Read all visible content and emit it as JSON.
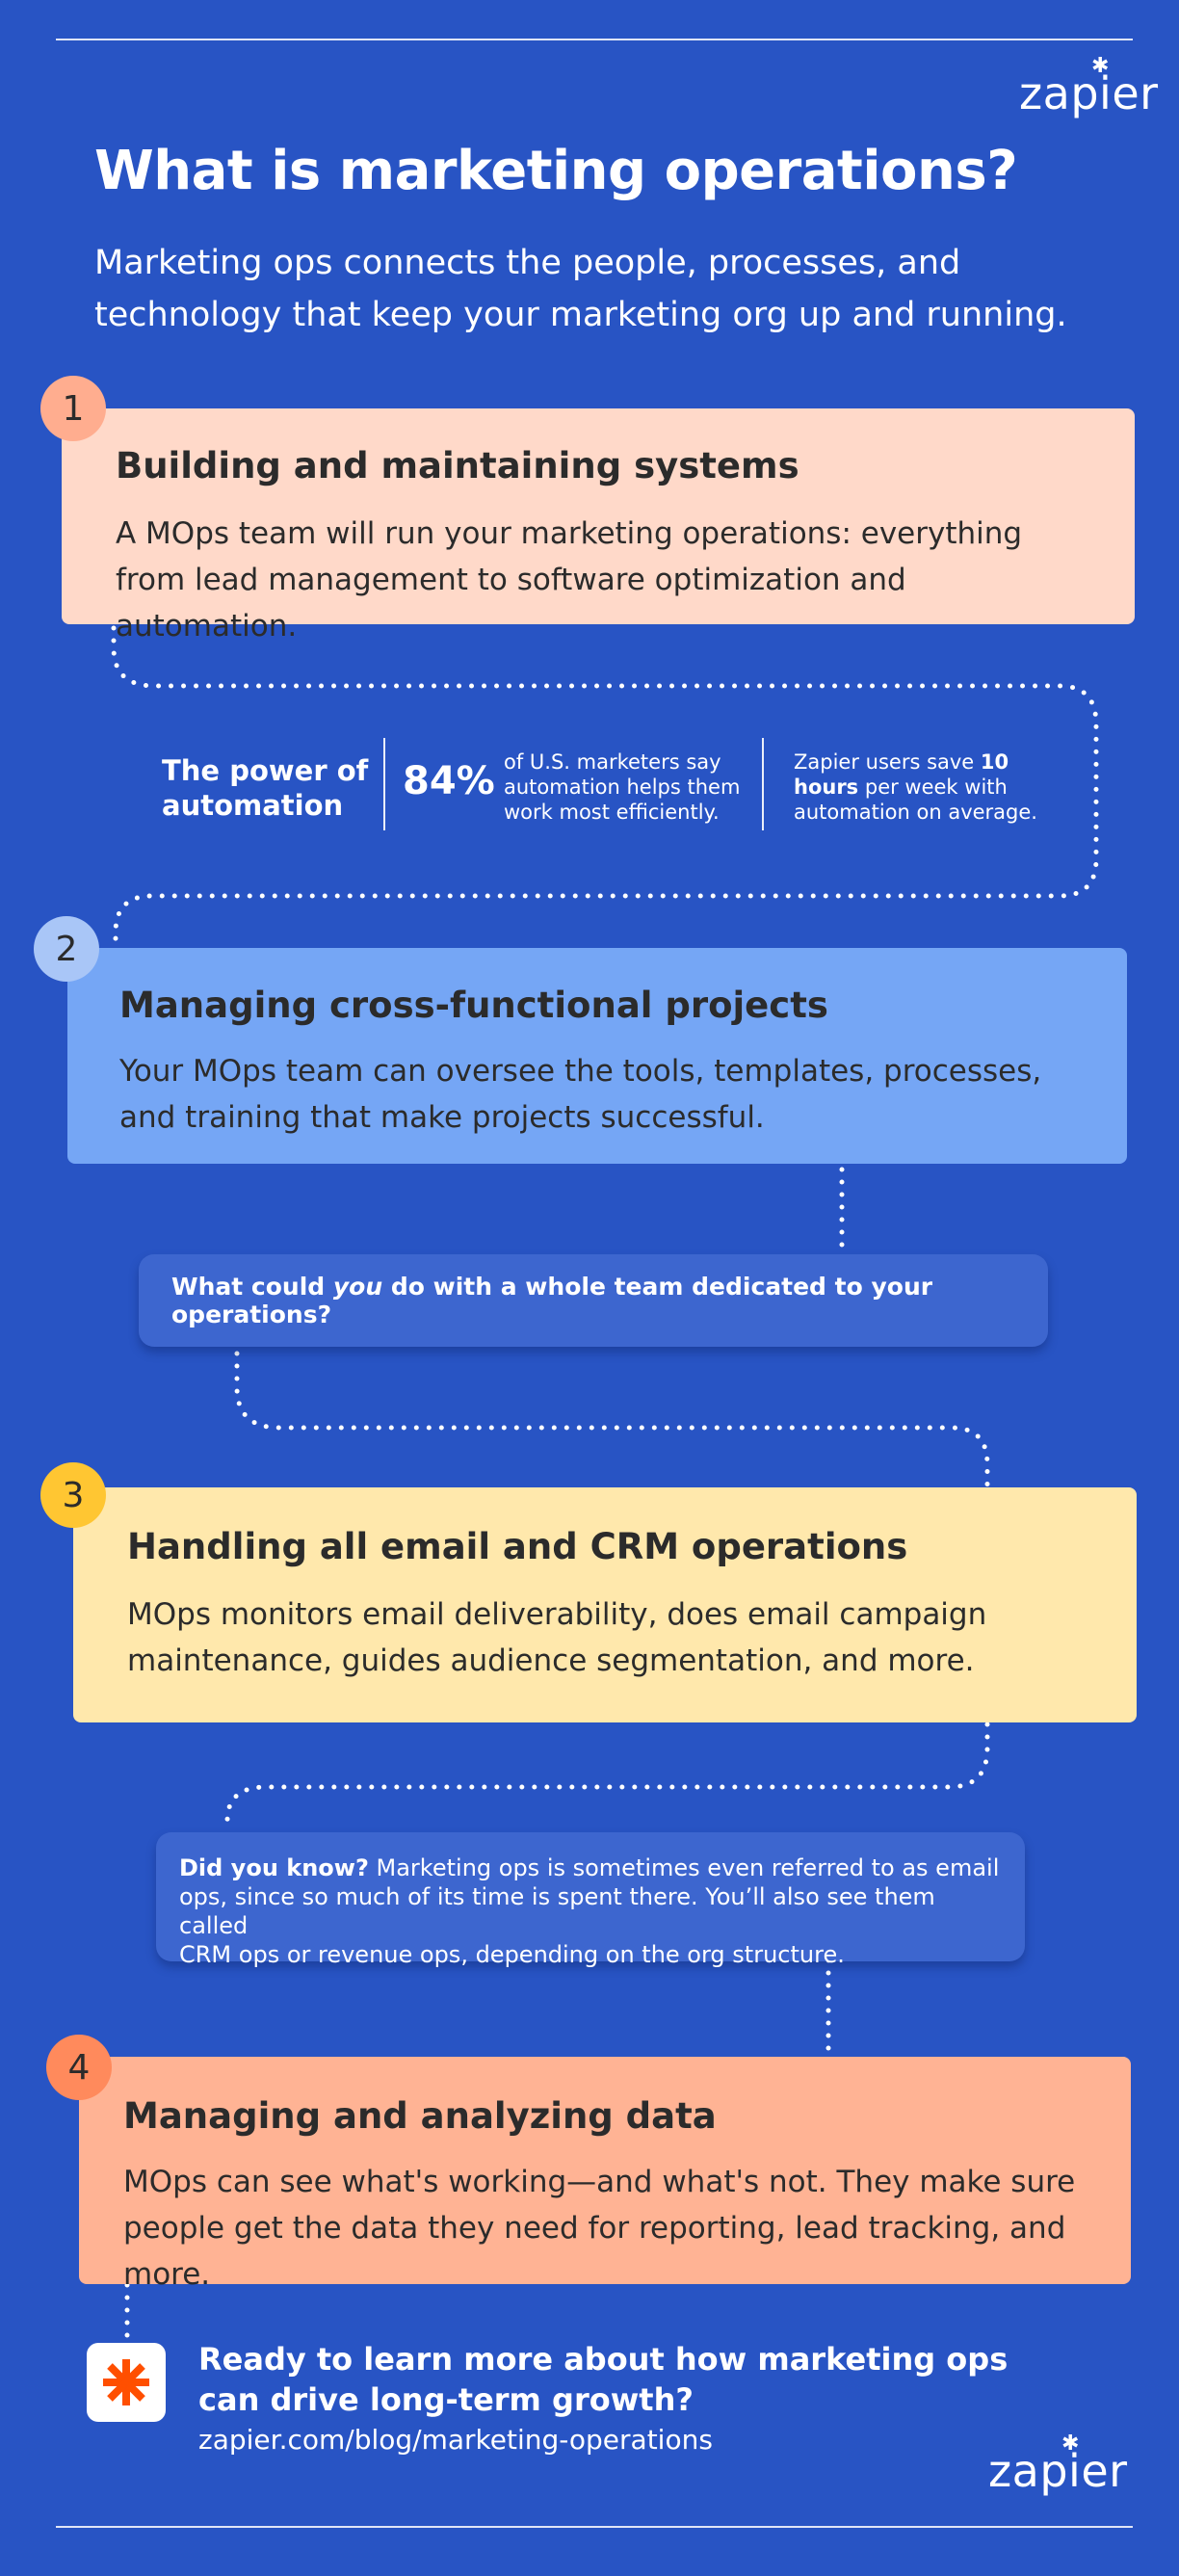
{
  "brand": {
    "logo_text": "zapier",
    "logo_star": "✱"
  },
  "header": {
    "title": "What is marketing operations?",
    "subtitle": "Marketing ops connects the people, processes, and technology that keep your marketing org up and running."
  },
  "steps": [
    {
      "number": "1",
      "title": "Building and maintaining systems",
      "body": "A MOps team will run your marketing operations: everything from lead management to software optimization and automation.",
      "card_color": "#ffd9c9",
      "badge_color": "#ffad8f"
    },
    {
      "number": "2",
      "title": "Managing cross-functional projects",
      "body": "Your MOps team can oversee the tools, templates, processes, and training that make projects successful.",
      "card_color": "#75a6f5",
      "badge_color": "#a9c6f7"
    },
    {
      "number": "3",
      "title": "Handling all email and CRM operations",
      "body": "MOps monitors email deliverability, does email campaign maintenance, guides audience segmentation, and more.",
      "card_color": "#ffe8ac",
      "badge_color": "#ffc632"
    },
    {
      "number": "4",
      "title": "Managing and analyzing data",
      "body": "MOps can see what's working—and what's not. They make sure people get the data they need for reporting, lead tracking, and more.",
      "card_color": "#ffb394",
      "badge_color": "#ff8a5c"
    }
  ],
  "automation": {
    "heading_line1": "The power of",
    "heading_line2": "automation",
    "stat_value": "84%",
    "stat_line1": "of U.S. marketers say",
    "stat_line2": "automation helps them",
    "stat_line3": "work most efficiently.",
    "save_pre": "Zapier users save ",
    "save_bold_1": "10",
    "save_bold_2": "hours",
    "save_post_1": " per week with",
    "save_post_2": "automation on average."
  },
  "question": {
    "pre": "What could ",
    "emph": "you",
    "post": " do with a whole team dedicated to your operations?"
  },
  "did_you_know": {
    "label": "Did you know?",
    "line1": " Marketing ops is sometimes even referred to as email",
    "line2": "ops, since so much of its time is spent there. You’ll also see them called",
    "line3": "CRM ops or revenue ops, depending on the org structure."
  },
  "cta": {
    "icon": "asterisk-icon",
    "line1": "Ready to learn more about how marketing ops",
    "line2": "can drive long-term growth?",
    "url": "zapier.com/blog/marketing-operations"
  }
}
